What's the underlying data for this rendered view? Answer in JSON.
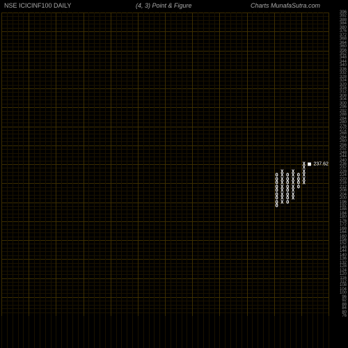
{
  "header": {
    "left": "NSE ICICINF100   DAILY",
    "center": "(4,  3) Point & Figure",
    "right": "Charts MunafaSutra.com"
  },
  "chart": {
    "type": "point-and-figure",
    "background_color": "#000000",
    "grid_color_minor": "#1a1200",
    "grid_color_major": "#3d2e00",
    "text_color_axis": "#888888",
    "text_color_header": "#aaaaaa",
    "symbol_color": "#ffffff",
    "box_size": 4,
    "reversal": 3,
    "y_min": 76,
    "y_max": 396,
    "y_tick_step": 4,
    "n_columns_grid": 60,
    "current_price_label": "237.62",
    "current_price_col": 56,
    "current_price_row": 236,
    "columns": [
      {
        "col": 50,
        "type": "O",
        "from": 224,
        "to": 192
      },
      {
        "col": 51,
        "type": "X",
        "from": 196,
        "to": 228
      },
      {
        "col": 52,
        "type": "O",
        "from": 224,
        "to": 196
      },
      {
        "col": 53,
        "type": "X",
        "from": 200,
        "to": 228
      },
      {
        "col": 54,
        "type": "O",
        "from": 224,
        "to": 212
      },
      {
        "col": 55,
        "type": "X",
        "from": 216,
        "to": 236
      }
    ]
  },
  "bottom_strip": {
    "tick_count": 60,
    "tick_color": "#1a1200"
  }
}
